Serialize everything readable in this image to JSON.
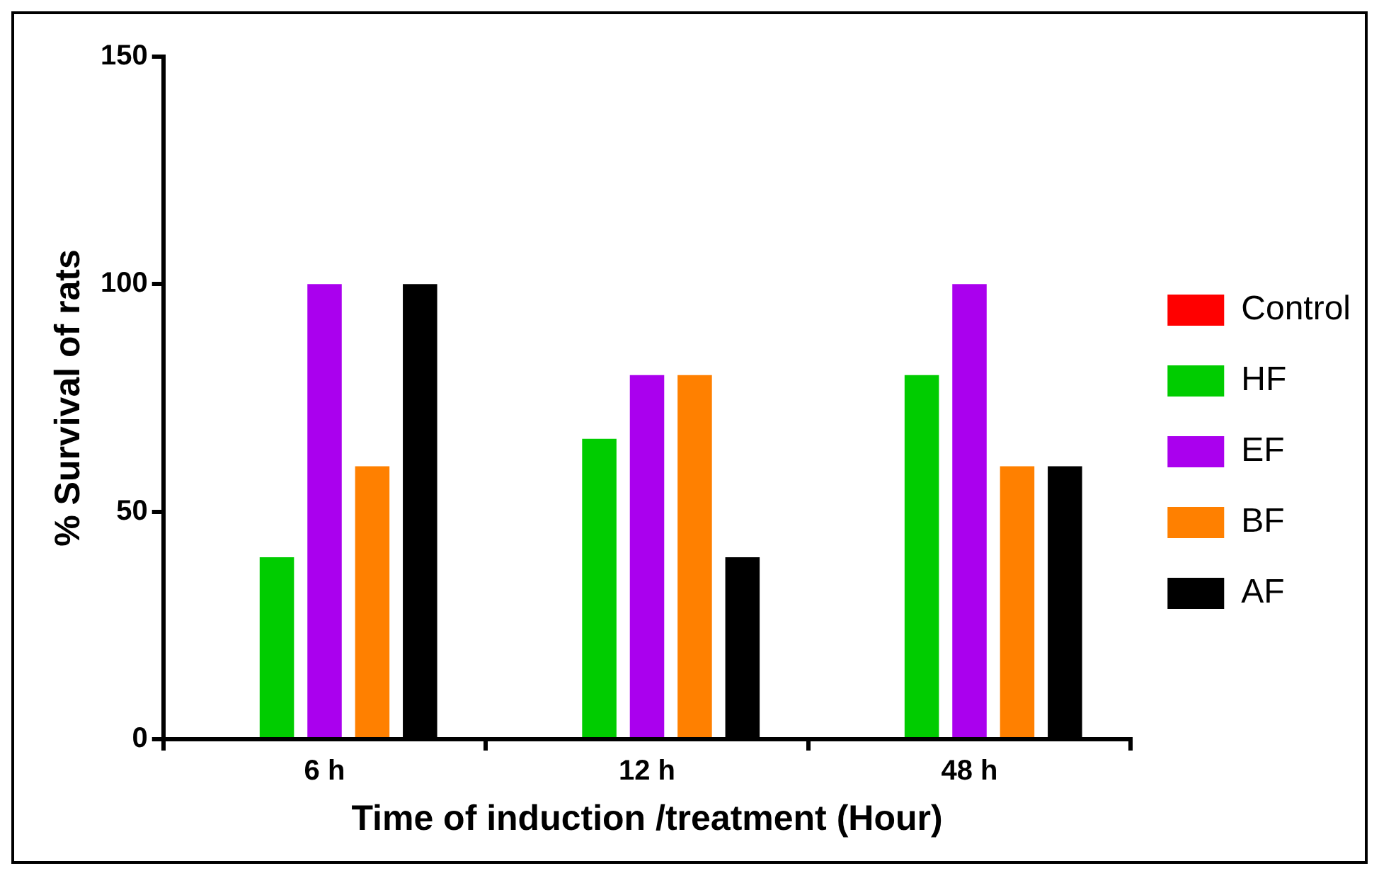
{
  "chart_data": {
    "type": "bar",
    "xlabel": "Time of induction /treatment (Hour)",
    "ylabel": "% Survival of rats",
    "categories": [
      "6 h",
      "12 h",
      "48 h"
    ],
    "series": [
      {
        "name": "Control",
        "color": "#ff0000",
        "values": [
          0,
          0,
          0
        ]
      },
      {
        "name": "HF",
        "color": "#00cc00",
        "values": [
          40,
          66,
          80
        ]
      },
      {
        "name": "EF",
        "color": "#aa00ee",
        "values": [
          100,
          80,
          100
        ]
      },
      {
        "name": "BF",
        "color": "#ff8000",
        "values": [
          60,
          80,
          60
        ]
      },
      {
        "name": "AF",
        "color": "#000000",
        "values": [
          100,
          40,
          60
        ]
      }
    ],
    "ylim": [
      0,
      150
    ],
    "yticks": [
      0,
      50,
      100,
      150
    ],
    "grid": false,
    "legend": "right"
  }
}
